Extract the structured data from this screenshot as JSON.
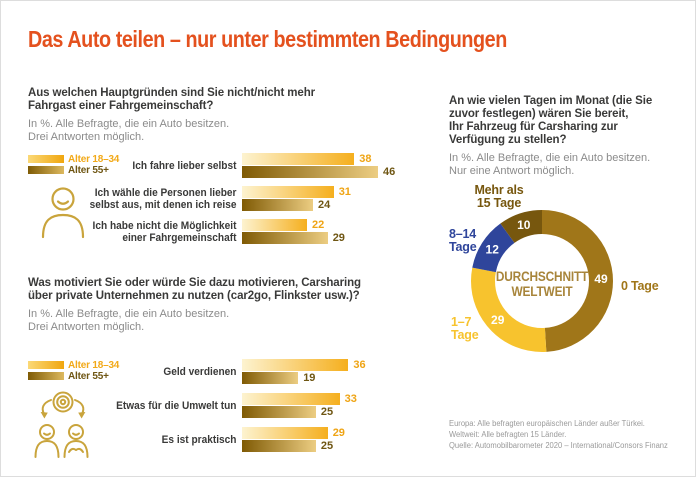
{
  "title": "Das Auto teilen – nur unter bestimmten Bedingungen",
  "colors": {
    "accent_orange": "#E4511E",
    "gold_young": "#F2A918",
    "brown_old": "#6F5613",
    "icon_gold": "#C9A43C"
  },
  "legend": {
    "young": "Alter 18–34",
    "old": "Alter 55+"
  },
  "chart_data": [
    {
      "type": "bar",
      "question": "Aus welchen Hauptgründen sind Sie nicht/nicht mehr\nFahrgast einer Fahrgemeinschaft?",
      "note": "In %. Alle Befragte, die ein Auto besitzen.\nDrei Antworten möglich.",
      "categories": [
        "Ich fahre lieber selbst",
        "Ich wähle die Personen lieber\nselbst aus, mit denen ich reise",
        "Ich habe nicht die Möglichkeit\neiner Fahrgemeinschaft"
      ],
      "series": [
        {
          "name": "Alter 18–34",
          "values": [
            38,
            31,
            22
          ]
        },
        {
          "name": "Alter 55+",
          "values": [
            46,
            24,
            29
          ]
        }
      ],
      "xmax": 46,
      "unit": "%"
    },
    {
      "type": "bar",
      "question": "Was motiviert Sie oder würde Sie dazu motivieren, Carsharing\nüber private Unternehmen zu nutzen (car2go, Flinkster usw.)?",
      "note": "In %. Alle Befragte, die ein Auto besitzen.\nDrei Antworten möglich.",
      "categories": [
        "Geld verdienen",
        "Etwas für die Umwelt tun",
        "Es ist praktisch"
      ],
      "series": [
        {
          "name": "Alter 18–34",
          "values": [
            36,
            33,
            29
          ]
        },
        {
          "name": "Alter 55+",
          "values": [
            19,
            25,
            25
          ]
        }
      ],
      "xmax": 46,
      "unit": "%"
    },
    {
      "type": "donut",
      "question": "An wie vielen Tagen im Monat (die Sie\nzuvor festlegen) wären Sie bereit,\nIhr Fahrzeug für Carsharing zur\nVerfügung zu stellen?",
      "note": "In %. Alle Befragte, die ein Auto besitzen.\nNur eine Antwort möglich.",
      "center_label": "DURCHSCHNITT\nWELTWEIT",
      "slices": [
        {
          "label": "0 Tage",
          "value": 49,
          "color": "#A07619"
        },
        {
          "label": "1–7\nTage",
          "value": 29,
          "color": "#F7C32E"
        },
        {
          "label": "8–14\nTage",
          "value": 12,
          "color": "#2F459B"
        },
        {
          "label": "Mehr als\n15 Tage",
          "value": 10,
          "color": "#77570E"
        }
      ],
      "unit": "%"
    }
  ],
  "footer": {
    "line1": "Europa: Alle befragten europäischen Länder außer Türkei.",
    "line2": "Weltweit: Alle befragten 15 Länder.",
    "line3": "Quelle: Automobilbarometer 2020 – International/Consors Finanz"
  }
}
